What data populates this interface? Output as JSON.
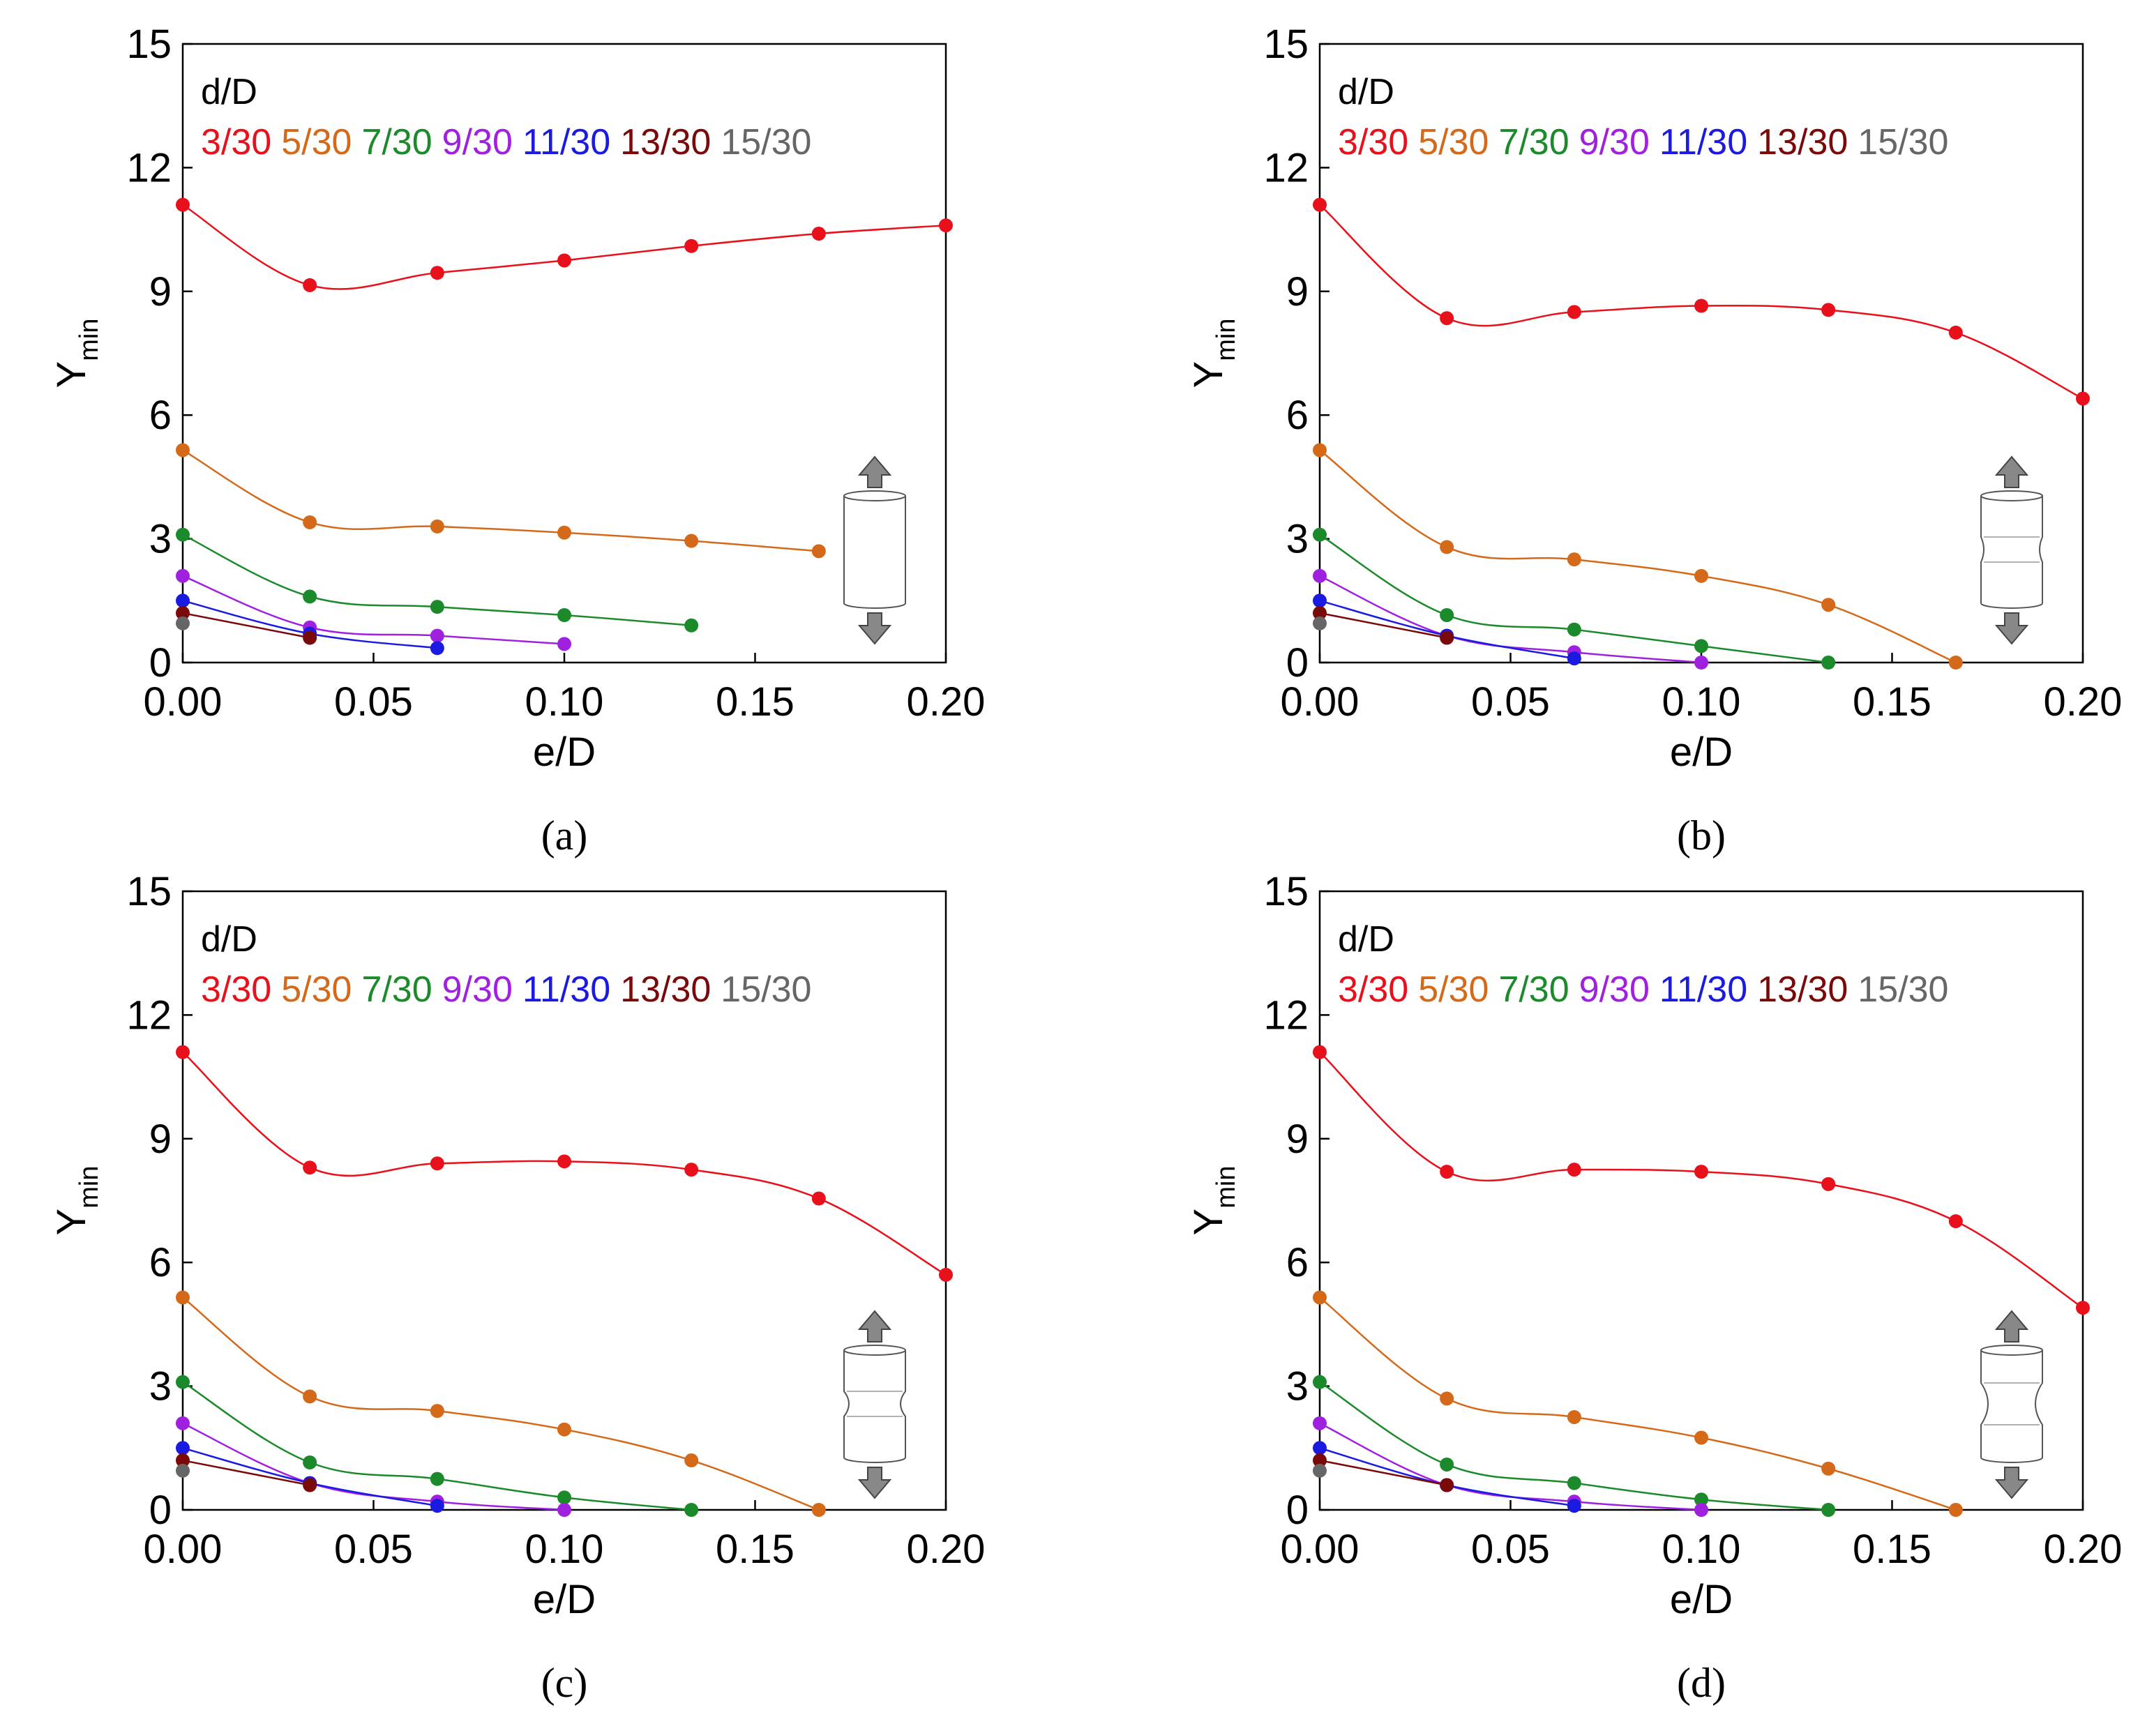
{
  "colors": {
    "3/30": "#e8101a",
    "5/30": "#d4691a",
    "7/30": "#1a8a2a",
    "9/30": "#a020e0",
    "11/30": "#1a1ae0",
    "13/30": "#7a0a0a",
    "15/30": "#666666"
  },
  "chart_data": [
    {
      "type": "line",
      "panel_label": "(a)",
      "xlabel": "e/D",
      "ylabel": "Y",
      "ylabel_sub": "min",
      "xlim": [
        0,
        0.2
      ],
      "ylim": [
        0,
        15
      ],
      "x_ticks": [
        "0.00",
        "0.05",
        "0.10",
        "0.15",
        "0.20"
      ],
      "y_ticks": [
        "0",
        "3",
        "6",
        "9",
        "12",
        "15"
      ],
      "legend_title": "d/D",
      "specimen_icon": "plain-cylinder",
      "series": [
        {
          "name": "3/30",
          "x": [
            0,
            0.0333,
            0.0667,
            0.1,
            0.1333,
            0.1667,
            0.2
          ],
          "y": [
            11.1,
            9.15,
            9.45,
            9.75,
            10.1,
            10.4,
            10.6
          ]
        },
        {
          "name": "5/30",
          "x": [
            0,
            0.0333,
            0.0667,
            0.1,
            0.1333,
            0.1667
          ],
          "y": [
            5.15,
            3.4,
            3.3,
            3.15,
            2.95,
            2.7
          ]
        },
        {
          "name": "7/30",
          "x": [
            0,
            0.0333,
            0.0667,
            0.1,
            0.1333
          ],
          "y": [
            3.1,
            1.6,
            1.35,
            1.15,
            0.9
          ]
        },
        {
          "name": "9/30",
          "x": [
            0,
            0.0333,
            0.0667,
            0.1
          ],
          "y": [
            2.1,
            0.85,
            0.65,
            0.45
          ]
        },
        {
          "name": "11/30",
          "x": [
            0,
            0.0333,
            0.0667
          ],
          "y": [
            1.5,
            0.7,
            0.35
          ]
        },
        {
          "name": "13/30",
          "x": [
            0,
            0.0333
          ],
          "y": [
            1.2,
            0.6
          ]
        },
        {
          "name": "15/30",
          "x": [
            0
          ],
          "y": [
            0.95
          ]
        }
      ]
    },
    {
      "type": "line",
      "panel_label": "(b)",
      "xlabel": "e/D",
      "ylabel": "Y",
      "ylabel_sub": "min",
      "xlim": [
        0,
        0.2
      ],
      "ylim": [
        0,
        15
      ],
      "x_ticks": [
        "0.00",
        "0.05",
        "0.10",
        "0.15",
        "0.20"
      ],
      "y_ticks": [
        "0",
        "3",
        "6",
        "9",
        "12",
        "15"
      ],
      "legend_title": "d/D",
      "specimen_icon": "shallow-notch",
      "series": [
        {
          "name": "3/30",
          "x": [
            0,
            0.0333,
            0.0667,
            0.1,
            0.1333,
            0.1667,
            0.2
          ],
          "y": [
            11.1,
            8.35,
            8.5,
            8.65,
            8.55,
            8.0,
            6.4
          ]
        },
        {
          "name": "5/30",
          "x": [
            0,
            0.0333,
            0.0667,
            0.1,
            0.1333,
            0.1667
          ],
          "y": [
            5.15,
            2.8,
            2.5,
            2.1,
            1.4,
            0.0
          ]
        },
        {
          "name": "7/30",
          "x": [
            0,
            0.0333,
            0.0667,
            0.1,
            0.1333
          ],
          "y": [
            3.1,
            1.15,
            0.8,
            0.4,
            0.0
          ]
        },
        {
          "name": "9/30",
          "x": [
            0,
            0.0333,
            0.0667,
            0.1
          ],
          "y": [
            2.1,
            0.65,
            0.25,
            0.0
          ]
        },
        {
          "name": "11/30",
          "x": [
            0,
            0.0333,
            0.0667
          ],
          "y": [
            1.5,
            0.65,
            0.1
          ]
        },
        {
          "name": "13/30",
          "x": [
            0,
            0.0333
          ],
          "y": [
            1.2,
            0.6
          ]
        },
        {
          "name": "15/30",
          "x": [
            0
          ],
          "y": [
            0.95
          ]
        }
      ]
    },
    {
      "type": "line",
      "panel_label": "(c)",
      "xlabel": "e/D",
      "ylabel": "Y",
      "ylabel_sub": "min",
      "xlim": [
        0,
        0.2
      ],
      "ylim": [
        0,
        15
      ],
      "x_ticks": [
        "0.00",
        "0.05",
        "0.10",
        "0.15",
        "0.20"
      ],
      "y_ticks": [
        "0",
        "3",
        "6",
        "9",
        "12",
        "15"
      ],
      "legend_title": "d/D",
      "specimen_icon": "medium-notch",
      "series": [
        {
          "name": "3/30",
          "x": [
            0,
            0.0333,
            0.0667,
            0.1,
            0.1333,
            0.1667,
            0.2
          ],
          "y": [
            11.1,
            8.3,
            8.4,
            8.45,
            8.25,
            7.55,
            5.7
          ]
        },
        {
          "name": "5/30",
          "x": [
            0,
            0.0333,
            0.0667,
            0.1,
            0.1333,
            0.1667
          ],
          "y": [
            5.15,
            2.75,
            2.4,
            1.95,
            1.2,
            0.0
          ]
        },
        {
          "name": "7/30",
          "x": [
            0,
            0.0333,
            0.0667,
            0.1,
            0.1333
          ],
          "y": [
            3.1,
            1.15,
            0.75,
            0.3,
            0.0
          ]
        },
        {
          "name": "9/30",
          "x": [
            0,
            0.0333,
            0.0667,
            0.1
          ],
          "y": [
            2.1,
            0.65,
            0.2,
            0.0
          ]
        },
        {
          "name": "11/30",
          "x": [
            0,
            0.0333,
            0.0667
          ],
          "y": [
            1.5,
            0.65,
            0.1
          ]
        },
        {
          "name": "13/30",
          "x": [
            0,
            0.0333
          ],
          "y": [
            1.2,
            0.6
          ]
        },
        {
          "name": "15/30",
          "x": [
            0
          ],
          "y": [
            0.95
          ]
        }
      ]
    },
    {
      "type": "line",
      "panel_label": "(d)",
      "xlabel": "e/D",
      "ylabel": "Y",
      "ylabel_sub": "min",
      "xlim": [
        0,
        0.2
      ],
      "ylim": [
        0,
        15
      ],
      "x_ticks": [
        "0.00",
        "0.05",
        "0.10",
        "0.15",
        "0.20"
      ],
      "y_ticks": [
        "0",
        "3",
        "6",
        "9",
        "12",
        "15"
      ],
      "legend_title": "d/D",
      "specimen_icon": "deep-notch",
      "series": [
        {
          "name": "3/30",
          "x": [
            0,
            0.0333,
            0.0667,
            0.1,
            0.1333,
            0.1667,
            0.2
          ],
          "y": [
            11.1,
            8.2,
            8.25,
            8.2,
            7.9,
            7.0,
            4.9
          ]
        },
        {
          "name": "5/30",
          "x": [
            0,
            0.0333,
            0.0667,
            0.1,
            0.1333,
            0.1667
          ],
          "y": [
            5.15,
            2.7,
            2.25,
            1.75,
            1.0,
            0.0
          ]
        },
        {
          "name": "7/30",
          "x": [
            0,
            0.0333,
            0.0667,
            0.1,
            0.1333
          ],
          "y": [
            3.1,
            1.1,
            0.65,
            0.25,
            0.0
          ]
        },
        {
          "name": "9/30",
          "x": [
            0,
            0.0333,
            0.0667,
            0.1
          ],
          "y": [
            2.1,
            0.6,
            0.2,
            0.0
          ]
        },
        {
          "name": "11/30",
          "x": [
            0,
            0.0333,
            0.0667
          ],
          "y": [
            1.5,
            0.6,
            0.1
          ]
        },
        {
          "name": "13/30",
          "x": [
            0,
            0.0333
          ],
          "y": [
            1.2,
            0.6
          ]
        },
        {
          "name": "15/30",
          "x": [
            0
          ],
          "y": [
            0.95
          ]
        }
      ]
    }
  ]
}
